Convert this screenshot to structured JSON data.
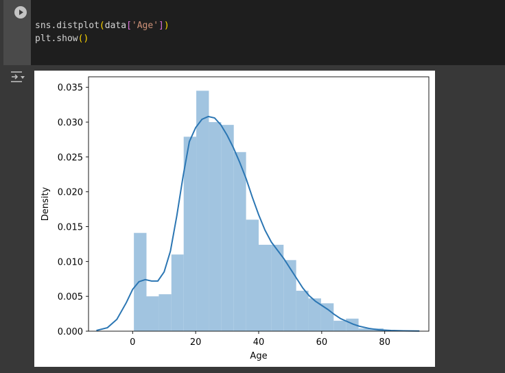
{
  "code": {
    "line1": {
      "prefix": "sns.distplot",
      "open": "(",
      "arg": "data",
      "bopen": "[",
      "str": "'Age'",
      "bclose": "]",
      "close": ")"
    },
    "line2": {
      "prefix": "plt.show",
      "parens": "()"
    }
  },
  "icons": {
    "run": "play-circle-icon",
    "output_toggle": "output-collapse-icon"
  },
  "chart_data": {
    "type": "histogram",
    "xlabel": "Age",
    "ylabel": "Density",
    "xlim": [
      -14,
      94
    ],
    "ylim": [
      0,
      0.0365
    ],
    "xticks": [
      0,
      20,
      40,
      60,
      80
    ],
    "xtick_labels": [
      "0",
      "20",
      "40",
      "60",
      "80"
    ],
    "yticks": [
      0,
      0.005,
      0.01,
      0.015,
      0.02,
      0.025,
      0.03,
      0.035
    ],
    "ytick_labels": [
      "0.000",
      "0.005",
      "0.010",
      "0.015",
      "0.020",
      "0.025",
      "0.030",
      "0.035"
    ],
    "bar_color": "#a1c4e0",
    "line_color": "#2b76b3",
    "bins": [
      {
        "x0": 0.4,
        "x1": 4.4,
        "y": 0.0141
      },
      {
        "x0": 4.4,
        "x1": 8.3,
        "y": 0.005
      },
      {
        "x0": 8.3,
        "x1": 12.3,
        "y": 0.0053
      },
      {
        "x0": 12.3,
        "x1": 16.2,
        "y": 0.011
      },
      {
        "x0": 16.2,
        "x1": 20.2,
        "y": 0.0279
      },
      {
        "x0": 20.2,
        "x1": 24.2,
        "y": 0.0345
      },
      {
        "x0": 24.2,
        "x1": 28.1,
        "y": 0.03
      },
      {
        "x0": 28.1,
        "x1": 32.1,
        "y": 0.0296
      },
      {
        "x0": 32.1,
        "x1": 36.0,
        "y": 0.0257
      },
      {
        "x0": 36.0,
        "x1": 40.0,
        "y": 0.016
      },
      {
        "x0": 40.0,
        "x1": 44.0,
        "y": 0.0124
      },
      {
        "x0": 44.0,
        "x1": 47.9,
        "y": 0.0124
      },
      {
        "x0": 47.9,
        "x1": 51.9,
        "y": 0.0102
      },
      {
        "x0": 51.9,
        "x1": 55.8,
        "y": 0.0058
      },
      {
        "x0": 55.8,
        "x1": 59.8,
        "y": 0.0047
      },
      {
        "x0": 59.8,
        "x1": 63.8,
        "y": 0.004
      },
      {
        "x0": 63.8,
        "x1": 67.7,
        "y": 0.0015
      },
      {
        "x0": 67.7,
        "x1": 71.7,
        "y": 0.0018
      },
      {
        "x0": 71.7,
        "x1": 75.6,
        "y": 0.0004
      },
      {
        "x0": 75.6,
        "x1": 79.6,
        "y": 0.0004
      }
    ],
    "kde": {
      "x": [
        -11.5,
        -8,
        -5,
        -2,
        0,
        2,
        4,
        6,
        8,
        10,
        12,
        14,
        16,
        18,
        20,
        22,
        24,
        26,
        28,
        30,
        32,
        34,
        36,
        38,
        40,
        42,
        44,
        46,
        48,
        50,
        52,
        54,
        56,
        58,
        60,
        62,
        64,
        66,
        68,
        70,
        72,
        75,
        78,
        82,
        86,
        91
      ],
      "y": [
        0.0001,
        0.0005,
        0.0017,
        0.0041,
        0.006,
        0.0071,
        0.0074,
        0.0072,
        0.0072,
        0.0085,
        0.0115,
        0.0165,
        0.0222,
        0.0272,
        0.0292,
        0.0304,
        0.0308,
        0.0306,
        0.0296,
        0.0281,
        0.0263,
        0.0242,
        0.0219,
        0.0192,
        0.0167,
        0.0145,
        0.0128,
        0.0116,
        0.0104,
        0.009,
        0.0076,
        0.0062,
        0.0051,
        0.0043,
        0.0037,
        0.0031,
        0.0024,
        0.0018,
        0.0014,
        0.001,
        0.0007,
        0.0004,
        0.0002,
        0.0001,
        5e-05,
        2e-05
      ]
    }
  }
}
